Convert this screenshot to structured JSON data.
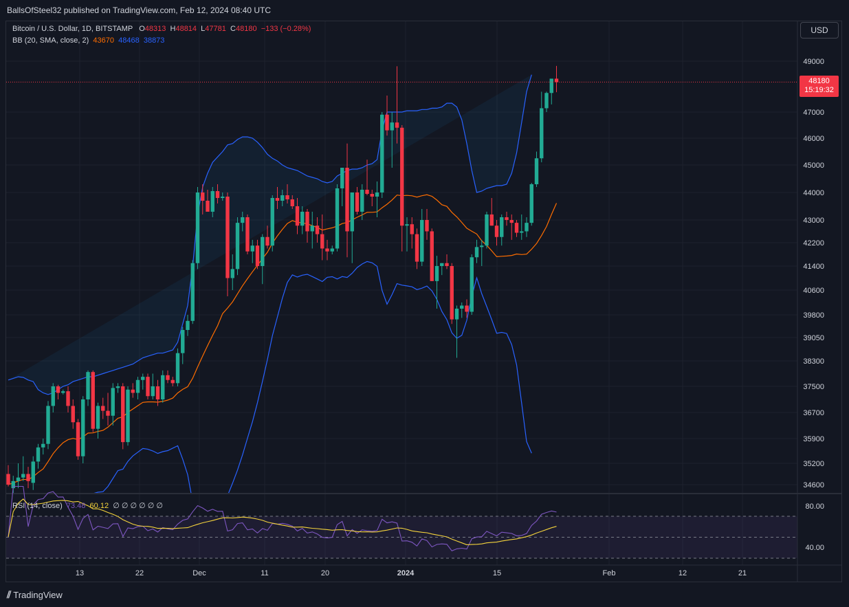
{
  "header": {
    "publish_text": "BallsOfSteel32 published on TradingView.com, Feb 12, 2024 08:40 UTC"
  },
  "legend": {
    "symbol": "Bitcoin / U.S. Dollar, 1D, BITSTAMP",
    "open_label": "O",
    "open": "48313",
    "high_label": "H",
    "high": "48814",
    "low_label": "L",
    "low": "47781",
    "close_label": "C",
    "close": "48180",
    "change": "−133 (−0.28%)",
    "bb_label": "BB (20, SMA, close, 2)",
    "bb_basis": "43670",
    "bb_upper": "48468",
    "bb_lower": "38873"
  },
  "rsi_legend": {
    "label": "RSI (14, close)",
    "value1": "73.48",
    "value2": "60.12",
    "zeros": "∅ ∅ ∅ ∅ ∅ ∅"
  },
  "currency_button": "USD",
  "last_price": {
    "price": "48180",
    "countdown": "15:19:32"
  },
  "footer": {
    "brand": "TradingView"
  },
  "colors": {
    "background": "#131722",
    "up": "#22ab94",
    "down": "#f23645",
    "bb_band": "#2962ff",
    "bb_basis": "#ff6d00",
    "rsi": "#7e57c2",
    "rsi_ma": "#f5d43c"
  },
  "chart_data": {
    "type": "candlestick",
    "title": "Bitcoin / U.S. Dollar, 1D, BITSTAMP",
    "y_axis_ticks": [
      49000,
      47000,
      46000,
      45000,
      44000,
      43000,
      42200,
      41400,
      40600,
      39800,
      39050,
      38300,
      37500,
      36700,
      35900,
      35200,
      34600
    ],
    "x_axis_ticks": [
      "13",
      "22",
      "Dec",
      "11",
      "20",
      "2024",
      "15",
      "Feb",
      "12",
      "21"
    ],
    "ylim": [
      34600,
      49000
    ],
    "candles": [
      [
        34900,
        35150,
        34550,
        34600
      ],
      [
        34500,
        34850,
        34200,
        34700
      ],
      [
        34700,
        35200,
        34500,
        34800
      ],
      [
        34800,
        35400,
        34700,
        34900
      ],
      [
        34900,
        35100,
        34500,
        34700
      ],
      [
        34650,
        35400,
        34450,
        35250
      ],
      [
        35250,
        35750,
        35050,
        35650
      ],
      [
        35650,
        35900,
        35450,
        35750
      ],
      [
        35750,
        37050,
        35600,
        36900
      ],
      [
        36900,
        37600,
        36700,
        37500
      ],
      [
        37500,
        37550,
        37100,
        37300
      ],
      [
        37300,
        37400,
        37250,
        37350
      ],
      [
        37350,
        37500,
        36700,
        36900
      ],
      [
        36900,
        37100,
        36200,
        36400
      ],
      [
        36400,
        36500,
        35300,
        35400
      ],
      [
        35400,
        37200,
        35200,
        37100
      ],
      [
        37100,
        38000,
        36900,
        37950
      ],
      [
        37950,
        38000,
        36100,
        36200
      ],
      [
        36200,
        37000,
        35900,
        36900
      ],
      [
        36900,
        37150,
        36500,
        36750
      ],
      [
        36750,
        37300,
        36300,
        36600
      ],
      [
        36600,
        37600,
        36300,
        37450
      ],
      [
        37450,
        37600,
        37300,
        37500
      ],
      [
        37500,
        37600,
        35600,
        35800
      ],
      [
        35800,
        37500,
        35700,
        37400
      ],
      [
        37400,
        37600,
        37150,
        37300
      ],
      [
        37300,
        37800,
        37100,
        37700
      ],
      [
        37700,
        37900,
        37400,
        37800
      ],
      [
        37800,
        37900,
        37100,
        37200
      ],
      [
        37200,
        37900,
        37100,
        37500
      ],
      [
        37500,
        37700,
        36900,
        37100
      ],
      [
        37100,
        38000,
        37000,
        37850
      ],
      [
        37850,
        38000,
        37600,
        37700
      ],
      [
        37700,
        37800,
        37500,
        37600
      ],
      [
        37600,
        38700,
        37500,
        38550
      ],
      [
        38550,
        39400,
        38200,
        39300
      ],
      [
        39300,
        39800,
        39100,
        39600
      ],
      [
        39600,
        41600,
        39500,
        41500
      ],
      [
        41500,
        44200,
        41300,
        44000
      ],
      [
        44000,
        44300,
        43200,
        43700
      ],
      [
        43700,
        44100,
        43300,
        43300
      ],
      [
        43300,
        44200,
        43100,
        44050
      ],
      [
        44050,
        44300,
        43600,
        43800
      ],
      [
        43800,
        44000,
        43700,
        43850
      ],
      [
        43850,
        44000,
        40400,
        41000
      ],
      [
        41000,
        41800,
        40600,
        41300
      ],
      [
        41300,
        43100,
        41100,
        42900
      ],
      [
        42900,
        43300,
        42600,
        43100
      ],
      [
        43100,
        43200,
        41800,
        41900
      ],
      [
        41900,
        42300,
        41500,
        42100
      ],
      [
        42100,
        42300,
        41300,
        41400
      ],
      [
        41400,
        42500,
        40800,
        42400
      ],
      [
        42400,
        42800,
        42000,
        42100
      ],
      [
        42100,
        43900,
        41900,
        43800
      ],
      [
        43800,
        44200,
        43400,
        43700
      ],
      [
        43700,
        44100,
        43500,
        43900
      ],
      [
        43900,
        44300,
        43600,
        43750
      ],
      [
        43750,
        43900,
        43400,
        43500
      ],
      [
        43500,
        43800,
        42500,
        42800
      ],
      [
        42800,
        43500,
        42500,
        43300
      ],
      [
        43300,
        43400,
        42200,
        42600
      ],
      [
        42600,
        43300,
        42000,
        42800
      ],
      [
        42800,
        43100,
        42200,
        42500
      ],
      [
        42500,
        43200,
        41600,
        42000
      ],
      [
        42000,
        42300,
        41600,
        41900
      ],
      [
        41900,
        42100,
        41800,
        42000
      ],
      [
        42000,
        44300,
        41900,
        44150
      ],
      [
        44150,
        44900,
        43500,
        44900
      ],
      [
        44900,
        45800,
        41700,
        42600
      ],
      [
        42600,
        44000,
        41500,
        44000
      ],
      [
        44000,
        44200,
        43200,
        43300
      ],
      [
        43300,
        44300,
        43000,
        44100
      ],
      [
        44100,
        45200,
        43900,
        43950
      ],
      [
        43950,
        44100,
        43500,
        43850
      ],
      [
        43850,
        44400,
        43100,
        44000
      ],
      [
        44000,
        47000,
        43800,
        46900
      ],
      [
        46900,
        47650,
        46100,
        46300
      ],
      [
        46300,
        47000,
        44900,
        46600
      ],
      [
        46600,
        48800,
        45800,
        46400
      ],
      [
        46400,
        46500,
        41900,
        42800
      ],
      [
        42800,
        43100,
        41900,
        42850
      ],
      [
        42850,
        43100,
        42000,
        42500
      ],
      [
        42500,
        42700,
        41300,
        41550
      ],
      [
        41550,
        43400,
        41400,
        43000
      ],
      [
        43000,
        43400,
        42300,
        42600
      ],
      [
        42600,
        42700,
        40900,
        40900
      ],
      [
        40900,
        41750,
        40000,
        41400
      ],
      [
        41400,
        41500,
        41100,
        41500
      ],
      [
        41500,
        41800,
        41300,
        41400
      ],
      [
        41400,
        41500,
        39500,
        39650
      ],
      [
        39650,
        40100,
        38400,
        40000
      ],
      [
        40000,
        40200,
        39700,
        40100
      ],
      [
        40100,
        40300,
        39700,
        39900
      ],
      [
        39900,
        41800,
        39800,
        41700
      ],
      [
        41700,
        42300,
        41500,
        42050
      ],
      [
        42050,
        42300,
        41400,
        42100
      ],
      [
        42100,
        43300,
        42000,
        43200
      ],
      [
        43200,
        43800,
        42800,
        42800
      ],
      [
        42800,
        43000,
        42100,
        42400
      ],
      [
        42400,
        43200,
        42100,
        43100
      ],
      [
        43100,
        43300,
        42800,
        43000
      ],
      [
        43000,
        43200,
        42300,
        42900
      ],
      [
        42900,
        43000,
        42400,
        42550
      ],
      [
        42550,
        43200,
        42300,
        42600
      ],
      [
        42600,
        43100,
        42400,
        42900
      ],
      [
        42900,
        44350,
        42800,
        44300
      ],
      [
        44300,
        45500,
        44200,
        45250
      ],
      [
        45250,
        47800,
        45100,
        47150
      ],
      [
        47150,
        47800,
        47000,
        47750
      ],
      [
        47750,
        48200,
        47300,
        48313
      ],
      [
        48313,
        48814,
        47781,
        48180
      ]
    ],
    "series": [
      {
        "name": "Basis",
        "values": []
      }
    ],
    "bb_upper_values": [
      37700,
      37750,
      37800,
      37780,
      37700,
      37650,
      37400,
      37300,
      37250,
      37300,
      37400,
      37500,
      37550,
      37650,
      37700,
      37750,
      37800,
      37800,
      37850,
      37900,
      37950,
      38000,
      38050,
      38100,
      38150,
      38200,
      38300,
      38400,
      38450,
      38500,
      38550,
      38550,
      38600,
      38650,
      38900,
      39500,
      40100,
      41400,
      43200,
      44200,
      44700,
      45100,
      45300,
      45500,
      45750,
      45800,
      45950,
      46050,
      46050,
      46000,
      45850,
      45650,
      45400,
      45250,
      45150,
      45000,
      44900,
      44850,
      44800,
      44700,
      44600,
      44550,
      44500,
      44400,
      44350,
      44400,
      44600,
      44700,
      44800,
      44850,
      44850,
      44900,
      45000,
      45050,
      45200,
      46300,
      47000,
      47000,
      47000,
      47000,
      47050,
      47050,
      47050,
      47100,
      47100,
      47150,
      47150,
      47200,
      47350,
      47350,
      47200,
      46700,
      45800,
      44800,
      44000,
      44050,
      44150,
      44200,
      44250,
      44250,
      44300,
      44700,
      45450,
      46600,
      47800,
      48468
    ]
  }
}
